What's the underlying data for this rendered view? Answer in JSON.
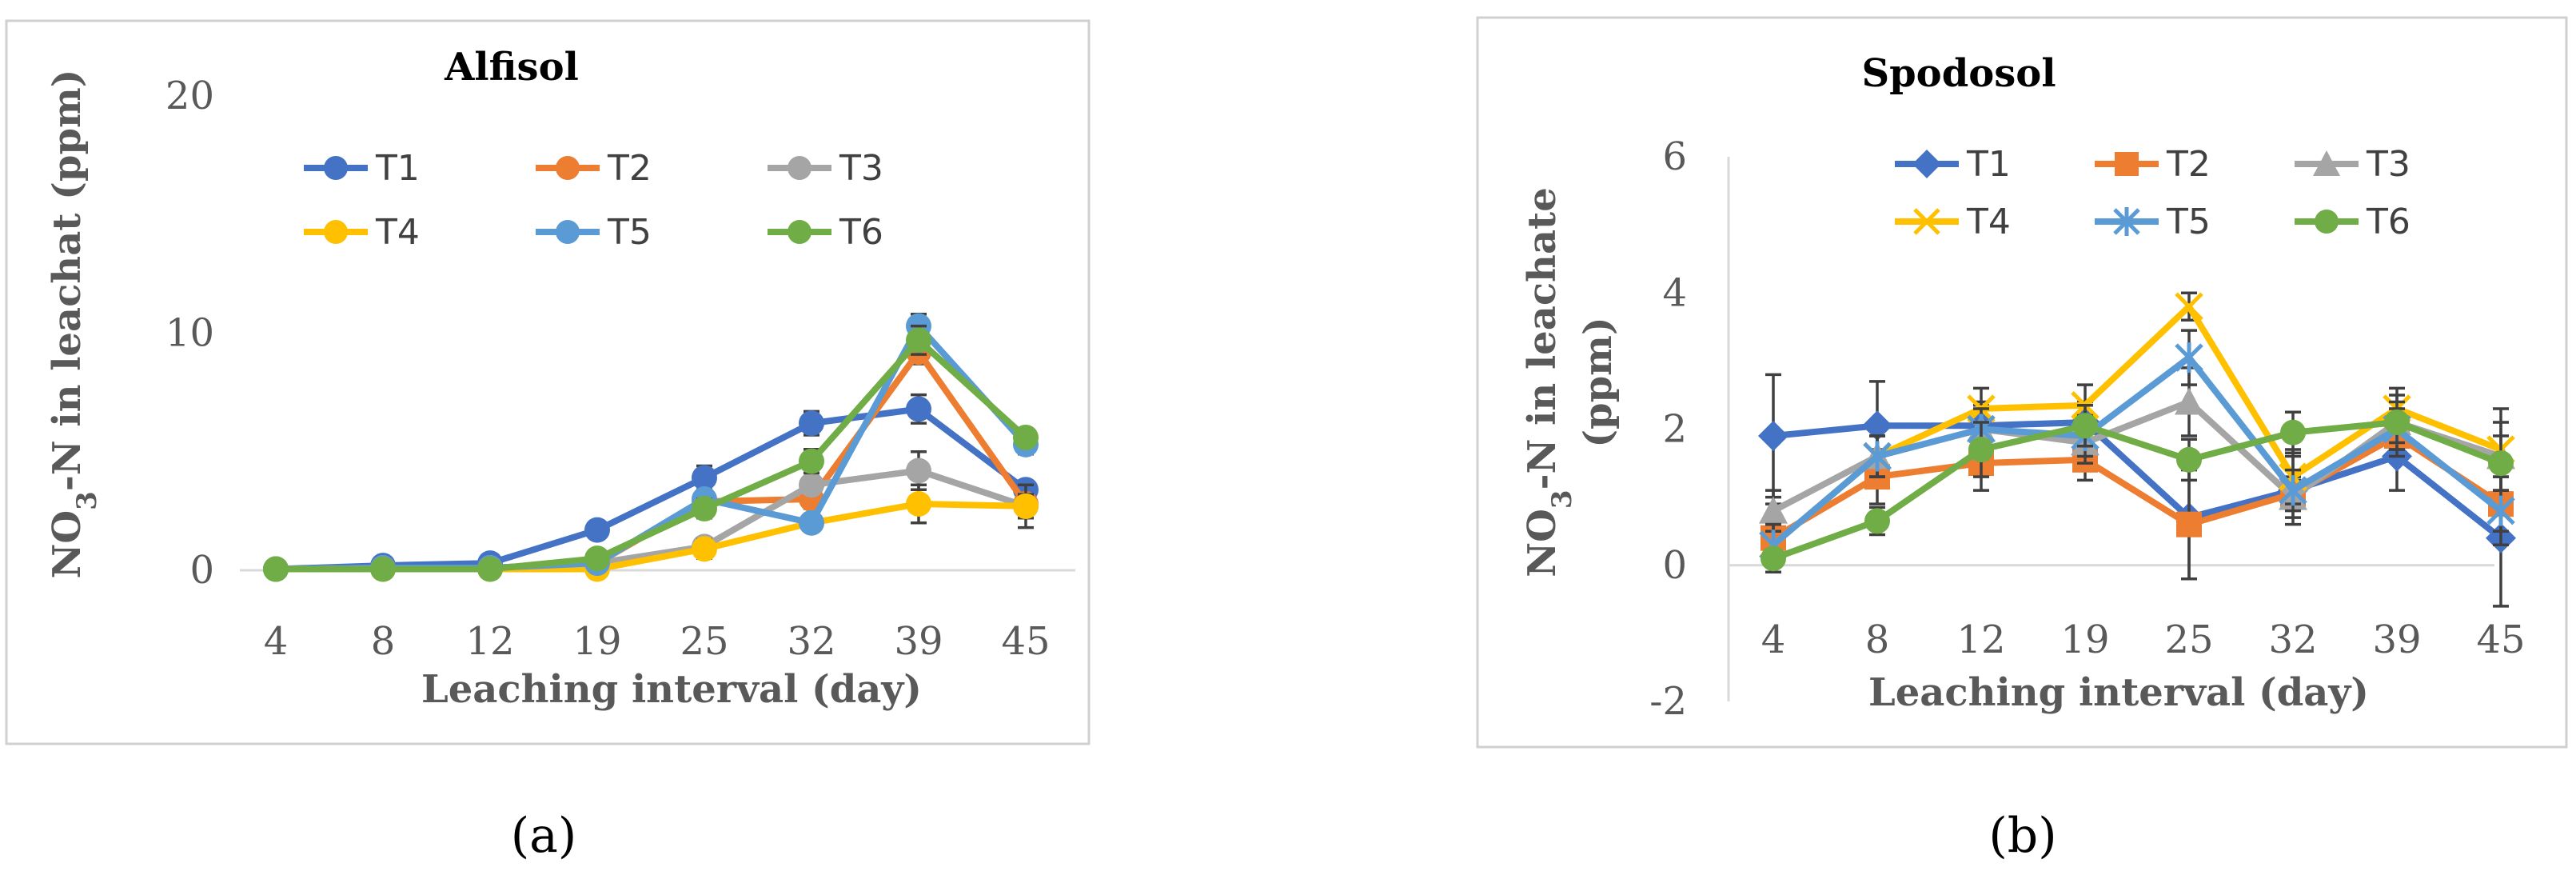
{
  "panel_labels": [
    "(a)",
    "(b)"
  ],
  "chart_data": [
    {
      "type": "line",
      "title": "Alfisol",
      "xlabel": "Leaching interval (day)",
      "ylabel_main": "NO",
      "ylabel_sub": "3",
      "ylabel_rest": "-N in leachat (ppm)",
      "categories": [
        "4",
        "8",
        "12",
        "19",
        "25",
        "32",
        "39",
        "45"
      ],
      "ylim": [
        0,
        20
      ],
      "yticks": [
        0,
        10,
        20
      ],
      "legend_position": "top-right",
      "grid": false,
      "series": [
        {
          "name": "T1",
          "color": "#4472c4",
          "marker": "circle",
          "values": [
            0.05,
            0.2,
            0.3,
            1.7,
            3.9,
            6.2,
            6.8,
            3.4
          ],
          "errors": [
            0,
            0,
            0,
            0,
            0.5,
            0.5,
            0.6,
            0
          ]
        },
        {
          "name": "T2",
          "color": "#ed7d31",
          "marker": "circle",
          "values": [
            0.05,
            0.1,
            0.1,
            0.3,
            2.9,
            3.0,
            9.2,
            2.8
          ],
          "errors": [
            0,
            0,
            0,
            0,
            0.3,
            0.4,
            0.5,
            0
          ]
        },
        {
          "name": "T3",
          "color": "#a5a5a5",
          "marker": "circle",
          "values": [
            0.05,
            0.1,
            0.1,
            0.3,
            1.0,
            3.6,
            4.2,
            2.7
          ],
          "errors": [
            0,
            0,
            0,
            0,
            0.2,
            0.3,
            0.8,
            0.5
          ]
        },
        {
          "name": "T4",
          "color": "#ffc000",
          "marker": "circle",
          "values": [
            0.05,
            0.05,
            0.05,
            0.05,
            0.9,
            2.0,
            2.8,
            2.7
          ],
          "errors": [
            0,
            0,
            0,
            0,
            0.4,
            0.3,
            0.8,
            0.9
          ]
        },
        {
          "name": "T5",
          "color": "#5b9bd5",
          "marker": "circle",
          "values": [
            0.05,
            0.1,
            0.1,
            0.3,
            3.0,
            2.0,
            10.3,
            5.3
          ],
          "errors": [
            0,
            0,
            0,
            0,
            0.3,
            0.3,
            0.5,
            0.4
          ]
        },
        {
          "name": "T6",
          "color": "#70ad47",
          "marker": "circle",
          "values": [
            0.05,
            0.05,
            0.05,
            0.5,
            2.6,
            4.6,
            9.7,
            5.6
          ],
          "errors": [
            0,
            0,
            0,
            0,
            0.4,
            0.5,
            0.6,
            0.3
          ]
        }
      ]
    },
    {
      "type": "line",
      "title": "Spodosol",
      "xlabel": "Leaching interval (day)",
      "ylabel_main": "NO",
      "ylabel_sub": "3",
      "ylabel_rest": "-N in leachate",
      "ylabel_line2": "(ppm)",
      "categories": [
        "4",
        "8",
        "12",
        "19",
        "25",
        "32",
        "39",
        "45"
      ],
      "ylim": [
        -2,
        6
      ],
      "yticks": [
        -2,
        0,
        2,
        4,
        6
      ],
      "legend_position": "top-right",
      "grid": false,
      "series": [
        {
          "name": "T1",
          "color": "#4472c4",
          "marker": "diamond",
          "values": [
            1.9,
            2.05,
            2.05,
            2.1,
            0.7,
            1.1,
            1.6,
            0.4
          ],
          "errors": [
            0.9,
            0.65,
            0.3,
            0.3,
            0.9,
            0.5,
            0.5,
            1.0
          ]
        },
        {
          "name": "T2",
          "color": "#ed7d31",
          "marker": "square",
          "values": [
            0.4,
            1.3,
            1.5,
            1.55,
            0.6,
            1.05,
            1.9,
            0.9
          ],
          "errors": [
            0.5,
            0.4,
            0.4,
            0.3,
            0.8,
            0.2,
            0.3,
            0.4
          ]
        },
        {
          "name": "T3",
          "color": "#a5a5a5",
          "marker": "triangle",
          "values": [
            0.8,
            1.6,
            2.0,
            1.8,
            2.4,
            1.0,
            2.1,
            1.6
          ],
          "errors": [
            0.3,
            0.3,
            0.4,
            0.3,
            0.5,
            0.3,
            0.4,
            0.5
          ]
        },
        {
          "name": "T4",
          "color": "#ffc000",
          "marker": "x",
          "values": [
            0.3,
            1.6,
            2.3,
            2.35,
            3.8,
            1.3,
            2.3,
            1.7
          ],
          "errors": [
            0.3,
            0.3,
            0.3,
            0.3,
            0.2,
            0.4,
            0.3,
            0.6
          ]
        },
        {
          "name": "T5",
          "color": "#5b9bd5",
          "marker": "star",
          "values": [
            0.3,
            1.6,
            2.0,
            1.9,
            3.05,
            1.1,
            2.0,
            0.8
          ],
          "errors": [
            0.3,
            0.3,
            0.3,
            0.3,
            0.4,
            0.3,
            0.3,
            0.5
          ]
        },
        {
          "name": "T6",
          "color": "#70ad47",
          "marker": "circle",
          "values": [
            0.1,
            0.65,
            1.7,
            2.05,
            1.55,
            1.95,
            2.1,
            1.5
          ],
          "errors": [
            0.1,
            0.2,
            0.4,
            0.3,
            0.3,
            0.3,
            0.3,
            0.4
          ]
        }
      ]
    }
  ]
}
